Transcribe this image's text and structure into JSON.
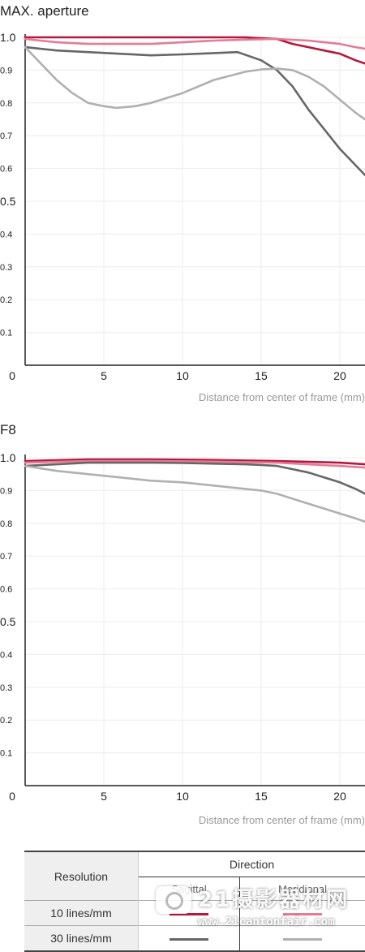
{
  "chart_data": [
    {
      "type": "line",
      "title": "MAX. aperture",
      "xlabel": "Distance from center of frame (mm)",
      "ylabel": "",
      "xlim": [
        0,
        21.6
      ],
      "ylim": [
        0,
        1.0
      ],
      "xticks": [
        "0",
        "5",
        "10",
        "15",
        "20"
      ],
      "yticks": [
        "0.1",
        "0.2",
        "0.3",
        "0.4",
        "0.5",
        "0.6",
        "0.7",
        "0.8",
        "0.9",
        "1.0"
      ],
      "grid": true,
      "series": [
        {
          "color": "#b5173f",
          "x": [
            0,
            2,
            4,
            6,
            8,
            10,
            12,
            14,
            16,
            17,
            18,
            19,
            20,
            21,
            21.6
          ],
          "y": [
            1.0,
            1.0,
            1.0,
            1.0,
            1.0,
            1.0,
            1.0,
            1.0,
            0.995,
            0.98,
            0.97,
            0.96,
            0.95,
            0.93,
            0.92
          ]
        },
        {
          "color": "#e57b96",
          "x": [
            0,
            2,
            4,
            6,
            8,
            10,
            12,
            14,
            16,
            18,
            20,
            21,
            21.6
          ],
          "y": [
            0.995,
            0.985,
            0.98,
            0.98,
            0.98,
            0.985,
            0.99,
            0.993,
            0.995,
            0.99,
            0.98,
            0.97,
            0.965
          ]
        },
        {
          "color": "#666666",
          "x": [
            0,
            2,
            4,
            6,
            8,
            10,
            12,
            13.5,
            15,
            16,
            17,
            18,
            19,
            20,
            21,
            21.6
          ],
          "y": [
            0.97,
            0.96,
            0.955,
            0.95,
            0.945,
            0.948,
            0.952,
            0.955,
            0.93,
            0.9,
            0.85,
            0.78,
            0.72,
            0.66,
            0.61,
            0.58
          ]
        },
        {
          "color": "#b0b0b0",
          "x": [
            0,
            1,
            2,
            3,
            4,
            5,
            5.8,
            7,
            8,
            10,
            12,
            14,
            15,
            16,
            17,
            18,
            19,
            20,
            21,
            21.6
          ],
          "y": [
            0.97,
            0.92,
            0.87,
            0.83,
            0.8,
            0.79,
            0.785,
            0.79,
            0.8,
            0.83,
            0.87,
            0.895,
            0.902,
            0.905,
            0.9,
            0.88,
            0.85,
            0.81,
            0.77,
            0.75
          ]
        }
      ]
    },
    {
      "type": "line",
      "title": "F8",
      "xlabel": "Distance from center of frame (mm)",
      "ylabel": "",
      "xlim": [
        0,
        21.6
      ],
      "ylim": [
        0,
        1.0
      ],
      "xticks": [
        "0",
        "5",
        "10",
        "15",
        "20"
      ],
      "yticks": [
        "0.1",
        "0.2",
        "0.3",
        "0.4",
        "0.5",
        "0.6",
        "0.7",
        "0.8",
        "0.9",
        "1.0"
      ],
      "grid": true,
      "series": [
        {
          "color": "#b5173f",
          "x": [
            0,
            4,
            8,
            12,
            16,
            20,
            21.6
          ],
          "y": [
            0.99,
            0.995,
            0.995,
            0.993,
            0.99,
            0.985,
            0.98
          ]
        },
        {
          "color": "#e57b96",
          "x": [
            0,
            4,
            8,
            12,
            16,
            20,
            21.6
          ],
          "y": [
            0.985,
            0.99,
            0.99,
            0.988,
            0.985,
            0.975,
            0.97
          ]
        },
        {
          "color": "#666666",
          "x": [
            0,
            2,
            4,
            6,
            8,
            10,
            12,
            14,
            15,
            16,
            17,
            18,
            19,
            20,
            21,
            21.6
          ],
          "y": [
            0.975,
            0.98,
            0.985,
            0.985,
            0.985,
            0.984,
            0.982,
            0.98,
            0.978,
            0.975,
            0.965,
            0.955,
            0.94,
            0.925,
            0.905,
            0.89
          ]
        },
        {
          "color": "#b0b0b0",
          "x": [
            0,
            2,
            4,
            6,
            8,
            10,
            12,
            14,
            15,
            16,
            17,
            18,
            19,
            20,
            21,
            21.6
          ],
          "y": [
            0.975,
            0.96,
            0.95,
            0.94,
            0.93,
            0.925,
            0.915,
            0.905,
            0.9,
            0.89,
            0.875,
            0.86,
            0.845,
            0.83,
            0.815,
            0.805
          ]
        }
      ]
    }
  ],
  "legend_table": {
    "resolution_header": "Resolution",
    "direction_header": "Direction",
    "sagittal": "Sagittal",
    "meridional": "Meridional",
    "rows": [
      {
        "label": "10 lines/mm",
        "sagittal_color": "#b5173f",
        "meridional_color": "#e57b96"
      },
      {
        "label": "30 lines/mm",
        "sagittal_color": "#666666",
        "meridional_color": "#b0b0b0"
      }
    ]
  },
  "watermark": {
    "big": "21摄影器材网",
    "small": "www.21cantonfair.com"
  }
}
